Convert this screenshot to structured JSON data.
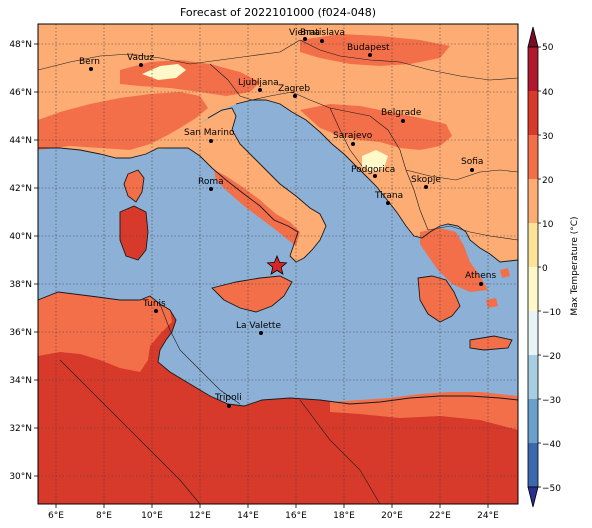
{
  "title": "Forecast of 2022101000 (f024-048)",
  "colors": {
    "sea": "#8db1d6",
    "warm_light": "#fdad73",
    "warm_mid": "#f36f4a",
    "warm_dark": "#d73a2a",
    "cool_pale": "#fff8c8",
    "border": "#1a1a1a"
  },
  "map": {
    "lon_ticks": [
      "6°E",
      "8°E",
      "10°E",
      "12°E",
      "14°E",
      "16°E",
      "18°E",
      "20°E",
      "22°E",
      "24°E"
    ],
    "lat_ticks": [
      "48°N",
      "46°N",
      "44°N",
      "42°N",
      "40°N",
      "38°N",
      "36°N",
      "34°N",
      "32°N",
      "30°N"
    ],
    "marker": "star-marker",
    "cities": [
      {
        "name": "Bern"
      },
      {
        "name": "Vaduz"
      },
      {
        "name": "Vienna"
      },
      {
        "name": "Bratislava"
      },
      {
        "name": "Budapest"
      },
      {
        "name": "Ljubljana"
      },
      {
        "name": "Zagreb"
      },
      {
        "name": "Belgrade"
      },
      {
        "name": "San Marino"
      },
      {
        "name": "Sarajevo"
      },
      {
        "name": "Podgorica"
      },
      {
        "name": "Sofia"
      },
      {
        "name": "Roma"
      },
      {
        "name": "Skopje"
      },
      {
        "name": "Tirana"
      },
      {
        "name": "Athens"
      },
      {
        "name": "Tunis"
      },
      {
        "name": "La Valette"
      },
      {
        "name": "Tripoli"
      }
    ]
  },
  "colorbar": {
    "label": "Max Temperature (°C)",
    "ticks": [
      "50",
      "40",
      "30",
      "20",
      "10",
      "0",
      "−10",
      "−20",
      "−30",
      "−40",
      "−50"
    ],
    "colors": [
      "#7a0a25",
      "#b0182e",
      "#d73a2a",
      "#f36f4a",
      "#fdad73",
      "#fee39a",
      "#fff8c8",
      "#e8f4f6",
      "#a6cde2",
      "#6ba0cb",
      "#3c69ae",
      "#2a2f8f"
    ]
  }
}
